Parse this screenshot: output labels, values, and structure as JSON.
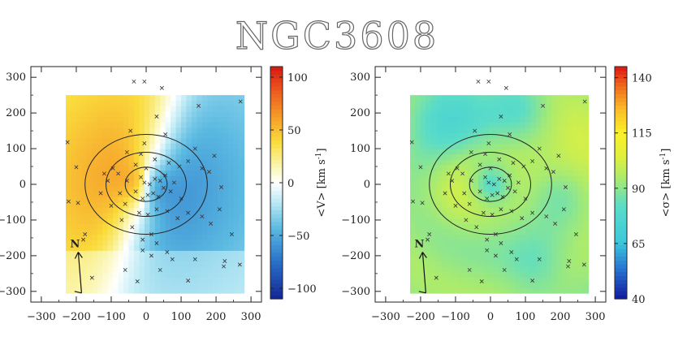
{
  "figure": {
    "title": "NGC3608"
  },
  "chart_data": [
    {
      "type": "heatmap",
      "name": "velocity-map",
      "xlim": [
        -330,
        330
      ],
      "ylim": [
        -330,
        330
      ],
      "x_ticks": [
        -300,
        -200,
        -100,
        0,
        100,
        200,
        300
      ],
      "y_ticks": [
        -300,
        -200,
        -100,
        0,
        100,
        200,
        300
      ],
      "map_extent": {
        "x": [
          -230,
          280
        ],
        "y": [
          -305,
          250
        ]
      },
      "colorbar": {
        "label": "<V> [km s",
        "label_sup": "-1",
        "label_close": "]",
        "min": -110,
        "max": 110,
        "ticks": [
          100,
          50,
          0,
          -50,
          -100
        ],
        "tick_labels": [
          "100",
          "50",
          "0",
          "−50",
          "−100"
        ]
      },
      "rotation_amplitude": 85,
      "pa_deg": 60,
      "ellipses": [
        {
          "a": 175,
          "b": 140
        },
        {
          "a": 115,
          "b": 90
        },
        {
          "a": 60,
          "b": 48
        }
      ],
      "compass": {
        "label": "N",
        "angle_deg": 15
      },
      "points": [
        [
          -35,
          288
        ],
        [
          -5,
          288
        ],
        [
          45,
          270
        ],
        [
          150,
          220
        ],
        [
          270,
          232
        ],
        [
          -225,
          118
        ],
        [
          -200,
          48
        ],
        [
          -222,
          -48
        ],
        [
          -195,
          -52
        ],
        [
          -175,
          -140
        ],
        [
          -180,
          -155
        ],
        [
          -155,
          -262
        ],
        [
          -60,
          -240
        ],
        [
          -25,
          -272
        ],
        [
          -10,
          -185
        ],
        [
          15,
          -200
        ],
        [
          30,
          190
        ],
        [
          55,
          140
        ],
        [
          -5,
          115
        ],
        [
          -45,
          150
        ],
        [
          -55,
          90
        ],
        [
          -15,
          85
        ],
        [
          25,
          70
        ],
        [
          65,
          60
        ],
        [
          95,
          50
        ],
        [
          120,
          65
        ],
        [
          140,
          100
        ],
        [
          160,
          45
        ],
        [
          180,
          35
        ],
        [
          195,
          80
        ],
        [
          215,
          -8
        ],
        [
          210,
          -70
        ],
        [
          245,
          -140
        ],
        [
          268,
          -225
        ],
        [
          225,
          -215
        ],
        [
          222,
          -230
        ],
        [
          140,
          -210
        ],
        [
          120,
          -270
        ],
        [
          75,
          -210
        ],
        [
          60,
          -190
        ],
        [
          40,
          -240
        ],
        [
          30,
          -165
        ],
        [
          15,
          -140
        ],
        [
          -10,
          -155
        ],
        [
          -40,
          -120
        ],
        [
          -70,
          -100
        ],
        [
          -100,
          -60
        ],
        [
          -130,
          -25
        ],
        [
          -110,
          10
        ],
        [
          -80,
          30
        ],
        [
          -55,
          10
        ],
        [
          -30,
          -20
        ],
        [
          -10,
          -40
        ],
        [
          5,
          -30
        ],
        [
          20,
          -25
        ],
        [
          35,
          -35
        ],
        [
          50,
          -10
        ],
        [
          70,
          -20
        ],
        [
          80,
          5
        ],
        [
          100,
          -40
        ],
        [
          120,
          -80
        ],
        [
          160,
          -90
        ],
        [
          185,
          -110
        ],
        [
          90,
          -95
        ],
        [
          60,
          -75
        ],
        [
          30,
          -70
        ],
        [
          5,
          -85
        ],
        [
          -20,
          -80
        ],
        [
          -60,
          -55
        ],
        [
          -75,
          -25
        ],
        [
          -95,
          45
        ],
        [
          -120,
          30
        ],
        [
          -15,
          20
        ],
        [
          -5,
          5
        ],
        [
          10,
          0
        ],
        [
          25,
          15
        ],
        [
          40,
          10
        ],
        [
          55,
          25
        ],
        [
          -30,
          55
        ],
        [
          0,
          45
        ]
      ]
    },
    {
      "type": "heatmap",
      "name": "dispersion-map",
      "xlim": [
        -330,
        330
      ],
      "ylim": [
        -330,
        330
      ],
      "x_ticks": [
        -300,
        -200,
        -100,
        0,
        100,
        200,
        300
      ],
      "y_ticks": [
        -300,
        -200,
        -100,
        0,
        100,
        200,
        300
      ],
      "map_extent": {
        "x": [
          -230,
          280
        ],
        "y": [
          -305,
          250
        ]
      },
      "colorbar": {
        "label": "<σ> [km s",
        "label_sup": "-1",
        "label_close": "]",
        "min": 40,
        "max": 145,
        "ticks": [
          140,
          115,
          90,
          65,
          40
        ],
        "tick_labels": [
          "140",
          "115",
          "90",
          "65",
          "40"
        ]
      },
      "ellipses": [
        {
          "a": 175,
          "b": 140
        },
        {
          "a": 115,
          "b": 90
        },
        {
          "a": 60,
          "b": 48
        }
      ],
      "compass": {
        "label": "N",
        "angle_deg": 15
      },
      "points": "same-as-velocity-map"
    }
  ]
}
